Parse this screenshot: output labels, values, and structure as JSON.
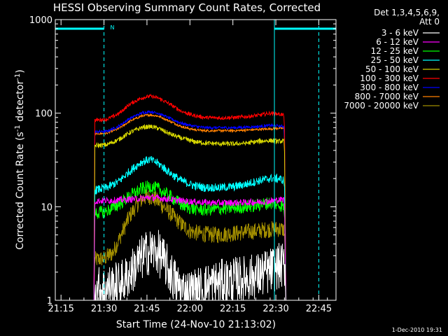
{
  "chart_data": {
    "type": "line",
    "title": "HESSI Observing Summary Count Rates, Corrected",
    "xlabel": "Start Time (24-Nov-10 21:13:02)",
    "ylabel": "Corrected Count Rate (s",
    "ylabel_sup1": "-1",
    "ylabel_mid": " detector",
    "ylabel_sup2": "-1",
    "ylabel_end": ")",
    "x_units": "minutes after 21:13:02",
    "xlim": [
      0,
      98
    ],
    "ylim": [
      1,
      1000
    ],
    "yscale": "log",
    "x_ticks": [
      {
        "label": "21:15",
        "x": 2
      },
      {
        "label": "21:30",
        "x": 17
      },
      {
        "label": "21:45",
        "x": 32
      },
      {
        "label": "22:00",
        "x": 47
      },
      {
        "label": "22:15",
        "x": 62
      },
      {
        "label": "22:30",
        "x": 77
      },
      {
        "label": "22:45",
        "x": 92
      }
    ],
    "y_ticks": [
      {
        "label": "1",
        "y": 1
      },
      {
        "label": "10",
        "y": 10
      },
      {
        "label": "100",
        "y": 100
      },
      {
        "label": "1000",
        "y": 1000
      }
    ],
    "legend_header": [
      "Det 1,3,4,5,6,9,",
      "Att 0"
    ],
    "legend_position": "right",
    "footer_date": "1-Dec-2010 19:31",
    "x_start": 13.5,
    "x_end": 80.5,
    "series": [
      {
        "name": "3 - 6 keV",
        "color": "#ffffff",
        "points": [
          [
            13.5,
            1
          ],
          [
            14,
            1.3
          ],
          [
            20,
            1.4
          ],
          [
            24,
            1.6
          ],
          [
            28,
            2.3
          ],
          [
            30,
            2.8
          ],
          [
            32,
            3.2
          ],
          [
            34,
            3.4
          ],
          [
            36,
            3.2
          ],
          [
            38,
            2.6
          ],
          [
            40,
            2.0
          ],
          [
            43,
            1.4
          ],
          [
            46,
            1.2
          ],
          [
            50,
            1.3
          ],
          [
            55,
            1.5
          ],
          [
            60,
            1.6
          ],
          [
            65,
            1.7
          ],
          [
            70,
            1.8
          ],
          [
            74,
            2.0
          ],
          [
            78,
            2.3
          ],
          [
            80.5,
            2.4
          ]
        ]
      },
      {
        "name": "6 - 12 keV",
        "color": "#ff00ff",
        "points": [
          [
            13.5,
            1
          ],
          [
            13.6,
            11.5
          ],
          [
            20,
            11.7
          ],
          [
            25,
            11.9
          ],
          [
            30,
            12.3
          ],
          [
            33,
            12.6
          ],
          [
            36,
            12.4
          ],
          [
            40,
            12.0
          ],
          [
            45,
            11.5
          ],
          [
            50,
            11.2
          ],
          [
            55,
            11.0
          ],
          [
            60,
            11.0
          ],
          [
            65,
            11.1
          ],
          [
            70,
            11.2
          ],
          [
            75,
            11.5
          ],
          [
            80,
            12
          ],
          [
            80.5,
            1
          ]
        ]
      },
      {
        "name": "12 - 25 keV",
        "color": "#00ff00",
        "points": [
          [
            13.5,
            1
          ],
          [
            13.6,
            8.5
          ],
          [
            18,
            9
          ],
          [
            22,
            10.5
          ],
          [
            26,
            13
          ],
          [
            30,
            15.5
          ],
          [
            33,
            16.5
          ],
          [
            36,
            15.5
          ],
          [
            40,
            13
          ],
          [
            44,
            10.5
          ],
          [
            48,
            9.5
          ],
          [
            52,
            9.3
          ],
          [
            58,
            9.5
          ],
          [
            63,
            9.8
          ],
          [
            67,
            10
          ],
          [
            71,
            10.5
          ],
          [
            75,
            11
          ],
          [
            78,
            10.5
          ],
          [
            80,
            10
          ],
          [
            80.5,
            1
          ]
        ]
      },
      {
        "name": "25 - 50 keV",
        "color": "#00ffff",
        "points": [
          [
            13.5,
            1
          ],
          [
            13.6,
            15
          ],
          [
            18,
            16
          ],
          [
            22,
            18.5
          ],
          [
            26,
            24
          ],
          [
            30,
            30
          ],
          [
            33,
            32
          ],
          [
            36,
            29
          ],
          [
            40,
            23
          ],
          [
            44,
            19
          ],
          [
            48,
            17
          ],
          [
            52,
            16
          ],
          [
            58,
            16
          ],
          [
            63,
            16.5
          ],
          [
            67,
            17.5
          ],
          [
            71,
            19
          ],
          [
            75,
            20
          ],
          [
            78,
            20
          ],
          [
            80,
            19
          ],
          [
            80.5,
            1
          ]
        ]
      },
      {
        "name": "50 - 100 keV",
        "color": "#d4d400",
        "points": [
          [
            13.5,
            1
          ],
          [
            13.6,
            45
          ],
          [
            18,
            46
          ],
          [
            22,
            52
          ],
          [
            26,
            62
          ],
          [
            30,
            70
          ],
          [
            33,
            72
          ],
          [
            36,
            69
          ],
          [
            40,
            60
          ],
          [
            44,
            54
          ],
          [
            48,
            50
          ],
          [
            52,
            48
          ],
          [
            58,
            47
          ],
          [
            63,
            47
          ],
          [
            67,
            48
          ],
          [
            71,
            50
          ],
          [
            75,
            51
          ],
          [
            78,
            50
          ],
          [
            80,
            50
          ],
          [
            80.5,
            1
          ]
        ]
      },
      {
        "name": "100 - 300 keV",
        "color": "#ff0000",
        "points": [
          [
            13.5,
            1
          ],
          [
            13.6,
            84
          ],
          [
            18,
            86
          ],
          [
            22,
            98
          ],
          [
            26,
            125
          ],
          [
            30,
            145
          ],
          [
            33,
            152
          ],
          [
            36,
            145
          ],
          [
            40,
            125
          ],
          [
            44,
            105
          ],
          [
            48,
            95
          ],
          [
            52,
            90
          ],
          [
            58,
            89
          ],
          [
            63,
            90
          ],
          [
            67,
            92
          ],
          [
            71,
            95
          ],
          [
            75,
            100
          ],
          [
            78,
            98
          ],
          [
            80,
            95
          ],
          [
            80.5,
            1
          ]
        ]
      },
      {
        "name": "300 - 800 keV",
        "color": "#0000ff",
        "points": [
          [
            13.5,
            1
          ],
          [
            13.6,
            63
          ],
          [
            18,
            64
          ],
          [
            22,
            72
          ],
          [
            26,
            88
          ],
          [
            30,
            100
          ],
          [
            33,
            104
          ],
          [
            36,
            100
          ],
          [
            40,
            88
          ],
          [
            44,
            78
          ],
          [
            48,
            73
          ],
          [
            52,
            70
          ],
          [
            58,
            70
          ],
          [
            63,
            70
          ],
          [
            67,
            71
          ],
          [
            71,
            72
          ],
          [
            75,
            74
          ],
          [
            78,
            73
          ],
          [
            80,
            72
          ],
          [
            80.5,
            1
          ]
        ]
      },
      {
        "name": "800 - 7000 keV",
        "color": "#ff8000",
        "points": [
          [
            13.5,
            1
          ],
          [
            13.6,
            60
          ],
          [
            18,
            61
          ],
          [
            22,
            68
          ],
          [
            26,
            82
          ],
          [
            30,
            93
          ],
          [
            33,
            96
          ],
          [
            36,
            93
          ],
          [
            40,
            82
          ],
          [
            44,
            72
          ],
          [
            48,
            67
          ],
          [
            52,
            65
          ],
          [
            58,
            65
          ],
          [
            63,
            65
          ],
          [
            67,
            66
          ],
          [
            71,
            67
          ],
          [
            75,
            68
          ],
          [
            78,
            69
          ],
          [
            80,
            69
          ],
          [
            80.5,
            1
          ]
        ]
      },
      {
        "name": "7000 - 20000 keV",
        "color": "#a08c00",
        "points": [
          [
            13.5,
            1
          ],
          [
            13.6,
            2.7
          ],
          [
            17,
            2.8
          ],
          [
            20,
            3.2
          ],
          [
            23,
            5
          ],
          [
            26,
            8
          ],
          [
            29,
            11
          ],
          [
            31,
            12.5
          ],
          [
            33,
            12.8
          ],
          [
            35,
            12
          ],
          [
            38,
            10
          ],
          [
            41,
            8
          ],
          [
            44,
            6.5
          ],
          [
            47,
            5.5
          ],
          [
            50,
            5.2
          ],
          [
            55,
            5.0
          ],
          [
            60,
            5.1
          ],
          [
            65,
            5.3
          ],
          [
            70,
            5.5
          ],
          [
            74,
            5.7
          ],
          [
            78,
            5.8
          ],
          [
            80,
            5.7
          ],
          [
            80.5,
            1
          ]
        ]
      }
    ],
    "attenuator_bars": [
      {
        "x_start": 0,
        "x_end": 17,
        "y": 800
      },
      {
        "x_start": 76.5,
        "x_end": 98,
        "y": 800
      }
    ],
    "bar_label": "N",
    "vlines_dashed": [
      17,
      92
    ],
    "vlines_solid": [
      0,
      76.5
    ]
  }
}
